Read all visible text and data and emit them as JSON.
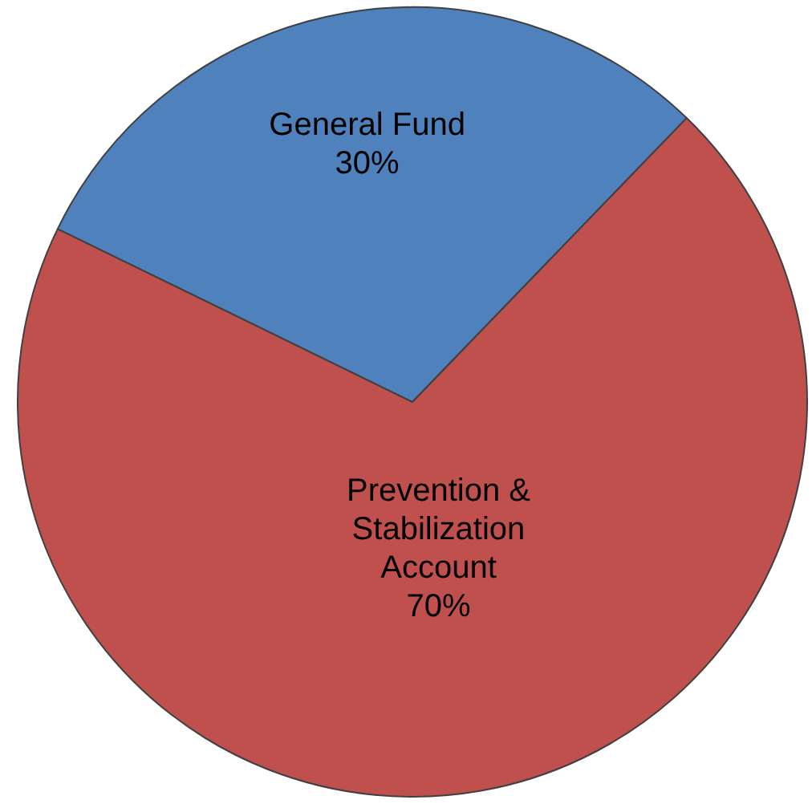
{
  "chart_data": {
    "type": "pie",
    "categories": [
      "General Fund",
      "Prevention & Stabilization Account"
    ],
    "values": [
      30,
      70
    ],
    "colors": [
      "#4f81bd",
      "#c0504d"
    ],
    "value_labels": [
      "30%",
      "70%"
    ],
    "legend": false
  }
}
